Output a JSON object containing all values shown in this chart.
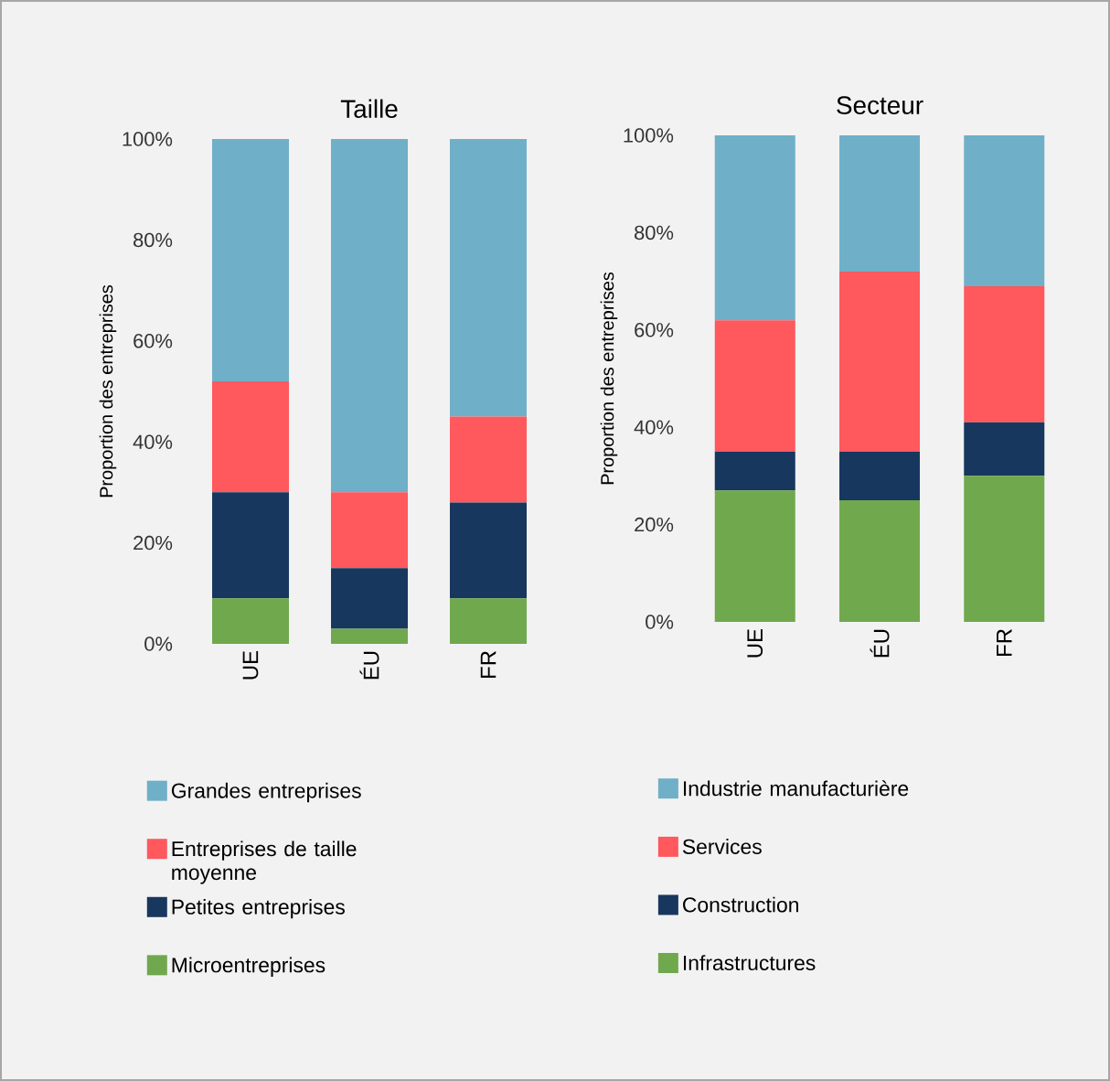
{
  "chart_data": [
    {
      "type": "bar",
      "title": "Taille",
      "ylabel": "Proportion des entreprises",
      "stacked": true,
      "legend": "bottom",
      "grid": false,
      "categories": [
        "UE",
        "ÉU",
        "FR"
      ],
      "ylim": [
        0,
        100
      ],
      "yticks": [
        {
          "value": 0,
          "label": "0%"
        },
        {
          "value": 20,
          "label": "20%"
        },
        {
          "value": 40,
          "label": "40%"
        },
        {
          "value": 60,
          "label": "60%"
        },
        {
          "value": 80,
          "label": "80%"
        },
        {
          "value": 100,
          "label": "100%"
        }
      ],
      "series": [
        {
          "name": "Microentreprises",
          "color": "#70a84e",
          "values": [
            9,
            3,
            9
          ]
        },
        {
          "name": "Petites entreprises",
          "color": "#17375e",
          "values": [
            21,
            12,
            19
          ]
        },
        {
          "name": "Entreprises de taille moyenne",
          "color": "#ff585d",
          "values": [
            22,
            15,
            17
          ]
        },
        {
          "name": "Grandes entreprises",
          "color": "#70afc8",
          "values": [
            48,
            70,
            55
          ]
        }
      ]
    },
    {
      "type": "bar",
      "title": "Secteur",
      "ylabel": "Proportion des entreprises",
      "stacked": true,
      "legend": "bottom",
      "grid": false,
      "categories": [
        "UE",
        "ÉU",
        "FR"
      ],
      "ylim": [
        0,
        100
      ],
      "yticks": [
        {
          "value": 0,
          "label": "0%"
        },
        {
          "value": 20,
          "label": "20%"
        },
        {
          "value": 40,
          "label": "40%"
        },
        {
          "value": 60,
          "label": "60%"
        },
        {
          "value": 80,
          "label": "80%"
        },
        {
          "value": 100,
          "label": "100%"
        }
      ],
      "series": [
        {
          "name": "Infrastructures",
          "color": "#70a84e",
          "values": [
            27,
            25,
            30
          ]
        },
        {
          "name": "Construction",
          "color": "#17375e",
          "values": [
            8,
            10,
            11
          ]
        },
        {
          "name": "Services",
          "color": "#ff585d",
          "values": [
            27,
            37,
            28
          ]
        },
        {
          "name": "Industrie manufacturière",
          "color": "#70afc8",
          "values": [
            38,
            28,
            31
          ]
        }
      ]
    }
  ]
}
